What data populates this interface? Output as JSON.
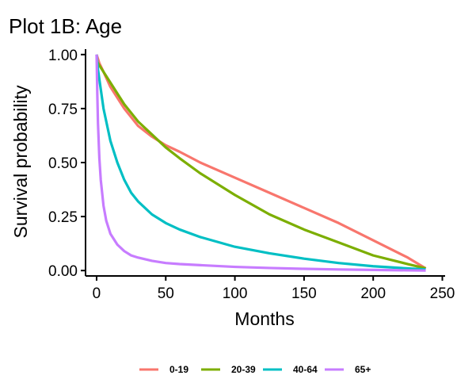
{
  "chart_data": {
    "type": "line",
    "title": "Plot 1B: Age",
    "xlabel": "Months",
    "ylabel": "Survival probability",
    "xlim": [
      -8,
      252
    ],
    "ylim": [
      -0.025,
      1.025
    ],
    "x_ticks": [
      0,
      50,
      100,
      150,
      200,
      250
    ],
    "x_tick_labels": [
      "0",
      "50",
      "100",
      "150",
      "200",
      "250"
    ],
    "y_ticks": [
      0,
      0.25,
      0.5,
      0.75,
      1.0
    ],
    "y_tick_labels": [
      "0.00",
      "0.25",
      "0.50",
      "0.75",
      "1.00"
    ],
    "grid": false,
    "legend_position": "bottom",
    "series": [
      {
        "name": "0-19",
        "color": "#F8766D",
        "x": [
          0,
          2,
          5,
          10,
          15,
          20,
          25,
          30,
          40,
          50,
          60,
          75,
          100,
          125,
          150,
          175,
          200,
          225,
          238
        ],
        "y": [
          1.0,
          0.96,
          0.92,
          0.85,
          0.8,
          0.75,
          0.71,
          0.67,
          0.62,
          0.58,
          0.55,
          0.5,
          0.43,
          0.36,
          0.29,
          0.22,
          0.14,
          0.06,
          0.01
        ]
      },
      {
        "name": "20-39",
        "color": "#7CAE00",
        "x": [
          0,
          2,
          5,
          10,
          15,
          20,
          25,
          30,
          40,
          50,
          60,
          75,
          100,
          125,
          150,
          175,
          200,
          225,
          238
        ],
        "y": [
          0.97,
          0.95,
          0.92,
          0.87,
          0.82,
          0.77,
          0.73,
          0.69,
          0.63,
          0.57,
          0.52,
          0.45,
          0.35,
          0.26,
          0.19,
          0.13,
          0.07,
          0.03,
          0.01
        ]
      },
      {
        "name": "40-64",
        "color": "#00BFC4",
        "x": [
          0,
          1,
          3,
          5,
          8,
          10,
          15,
          20,
          25,
          30,
          40,
          50,
          60,
          75,
          100,
          125,
          150,
          175,
          200,
          225,
          238
        ],
        "y": [
          1.0,
          0.93,
          0.84,
          0.75,
          0.66,
          0.6,
          0.5,
          0.42,
          0.36,
          0.32,
          0.26,
          0.22,
          0.19,
          0.155,
          0.11,
          0.08,
          0.055,
          0.035,
          0.02,
          0.01,
          0.005
        ]
      },
      {
        "name": "65+",
        "color": "#C77CFF",
        "x": [
          0,
          0.5,
          1,
          2,
          3,
          5,
          7,
          10,
          15,
          20,
          25,
          30,
          40,
          50,
          60,
          75,
          100,
          125,
          150,
          175,
          200,
          225,
          238
        ],
        "y": [
          1.0,
          0.82,
          0.68,
          0.52,
          0.42,
          0.3,
          0.23,
          0.17,
          0.12,
          0.09,
          0.07,
          0.06,
          0.045,
          0.035,
          0.03,
          0.025,
          0.017,
          0.012,
          0.008,
          0.005,
          0.003,
          0.001,
          0.0
        ]
      }
    ]
  }
}
